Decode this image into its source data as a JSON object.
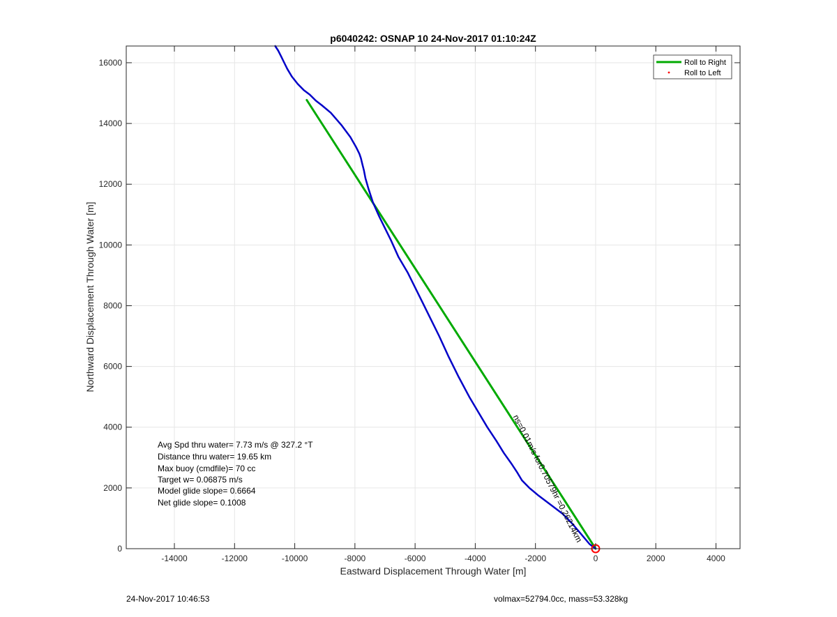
{
  "chart_data": {
    "type": "line",
    "title": "p6040242: OSNAP 10 24-Nov-2017 01:10:24Z",
    "xlabel": "Eastward Displacement Through Water [m]",
    "ylabel": "Northward Displacement Through Water [m]",
    "xlim": [
      -15600,
      4800
    ],
    "ylim": [
      0,
      16550
    ],
    "xticks": [
      -14000,
      -12000,
      -10000,
      -8000,
      -6000,
      -4000,
      -2000,
      0,
      2000,
      4000
    ],
    "yticks": [
      0,
      2000,
      4000,
      6000,
      8000,
      10000,
      12000,
      14000,
      16000
    ],
    "grid": true,
    "legend_position": "top-right",
    "legend": [
      {
        "label": "Roll to Right",
        "style": "line",
        "color": "#00aa00"
      },
      {
        "label": "Roll to Left",
        "style": "dot",
        "color": "#ff0000"
      }
    ],
    "series": [
      {
        "style": "line",
        "color": "#00aa00",
        "x": [
          0,
          -9600
        ],
        "y": [
          0,
          14770
        ]
      },
      {
        "style": "line",
        "color": "#0000c8",
        "x": [
          0,
          -200,
          -500,
          -800,
          -1100,
          -1500,
          -1900,
          -2200,
          -2450,
          -2600,
          -2800,
          -3050,
          -3300,
          -3600,
          -3900,
          -4200,
          -4550,
          -4900,
          -5200,
          -5500,
          -5750,
          -6000,
          -6250,
          -6550,
          -6800,
          -7000,
          -7200,
          -7400,
          -7550,
          -7650,
          -7700,
          -7750,
          -7800,
          -7850,
          -7950,
          -8150,
          -8450,
          -8800,
          -9100,
          -9300,
          -9500,
          -9700,
          -9900,
          -10100,
          -10250,
          -10350,
          -10450,
          -10550,
          -10650
        ],
        "y": [
          0,
          150,
          500,
          850,
          1150,
          1450,
          1750,
          2000,
          2250,
          2500,
          2800,
          3150,
          3550,
          4000,
          4500,
          5000,
          5650,
          6350,
          7000,
          7600,
          8100,
          8600,
          9100,
          9600,
          10150,
          10550,
          10950,
          11400,
          11850,
          12200,
          12450,
          12650,
          12850,
          13000,
          13200,
          13550,
          13950,
          14350,
          14600,
          14750,
          14950,
          15100,
          15300,
          15550,
          15800,
          16000,
          16200,
          16400,
          16550
        ]
      }
    ],
    "start_marker": {
      "x": 0,
      "y": 0,
      "color": "#ff0000",
      "shape": "circle"
    },
    "annotations": {
      "stats": [
        "Avg Spd thru water=  7.73 m/s @ 327.2 °T",
        "Distance thru water= 19.65 km",
        "Max buoy (cmdfile)= 70 cc",
        "Target w= 0.06875 m/s",
        "Model glide slope= 0.6664",
        "Net glide slope= 0.1008"
      ],
      "rotated_label": "ns=0.01m/s for0.70579hr =0.26214km",
      "rotated_label_position": {
        "x": -2750,
        "y": 4350
      }
    }
  },
  "footer": {
    "timestamp": "24-Nov-2017 10:46:53",
    "info": "volmax=52794.0cc, mass=53.328kg"
  }
}
